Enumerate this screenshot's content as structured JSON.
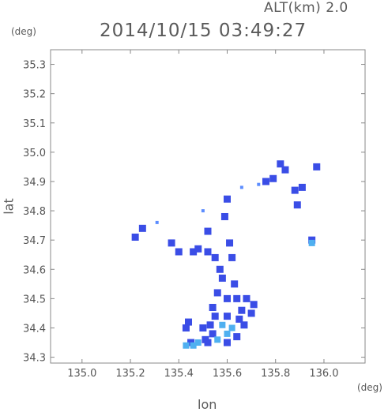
{
  "header": {
    "altitude_label": "ALT(km) 2.0",
    "datetime": "2014/10/15 03:49:27"
  },
  "chart_data": {
    "type": "heatmap",
    "title": "2014/10/15 03:49:27",
    "xlabel": "lon",
    "ylabel": "lat",
    "x_unit": "(deg)",
    "y_unit": "(deg)",
    "xlim": [
      134.87,
      136.17
    ],
    "ylim": [
      34.28,
      35.35
    ],
    "x_ticks": [
      "135.0",
      "135.2",
      "135.4",
      "135.6",
      "135.8",
      "136.0"
    ],
    "y_ticks": [
      "34.3",
      "34.4",
      "34.5",
      "34.6",
      "34.7",
      "34.8",
      "34.9",
      "35.0",
      "35.1",
      "35.2",
      "35.3"
    ],
    "grid": false,
    "colors": {
      "low": "#5c8dff",
      "mid": "#3a4de6",
      "high": "#4fb0f0",
      "frame": "#888888"
    },
    "echo_cells": [
      {
        "lon": 135.22,
        "lat": 34.71,
        "level": "mid"
      },
      {
        "lon": 135.25,
        "lat": 34.74,
        "level": "mid"
      },
      {
        "lon": 135.31,
        "lat": 34.76,
        "level": "low"
      },
      {
        "lon": 135.37,
        "lat": 34.69,
        "level": "mid"
      },
      {
        "lon": 135.4,
        "lat": 34.66,
        "level": "mid"
      },
      {
        "lon": 135.46,
        "lat": 34.66,
        "level": "mid"
      },
      {
        "lon": 135.48,
        "lat": 34.67,
        "level": "mid"
      },
      {
        "lon": 135.5,
        "lat": 34.8,
        "level": "low"
      },
      {
        "lon": 135.52,
        "lat": 34.73,
        "level": "mid"
      },
      {
        "lon": 135.52,
        "lat": 34.66,
        "level": "mid"
      },
      {
        "lon": 135.55,
        "lat": 34.64,
        "level": "mid"
      },
      {
        "lon": 135.57,
        "lat": 34.6,
        "level": "mid"
      },
      {
        "lon": 135.59,
        "lat": 34.78,
        "level": "mid"
      },
      {
        "lon": 135.6,
        "lat": 34.84,
        "level": "mid"
      },
      {
        "lon": 135.61,
        "lat": 34.69,
        "level": "mid"
      },
      {
        "lon": 135.62,
        "lat": 34.64,
        "level": "mid"
      },
      {
        "lon": 135.58,
        "lat": 34.57,
        "level": "mid"
      },
      {
        "lon": 135.63,
        "lat": 34.55,
        "level": "mid"
      },
      {
        "lon": 135.56,
        "lat": 34.52,
        "level": "mid"
      },
      {
        "lon": 135.6,
        "lat": 34.5,
        "level": "mid"
      },
      {
        "lon": 135.64,
        "lat": 34.5,
        "level": "mid"
      },
      {
        "lon": 135.68,
        "lat": 34.5,
        "level": "mid"
      },
      {
        "lon": 135.71,
        "lat": 34.48,
        "level": "mid"
      },
      {
        "lon": 135.54,
        "lat": 34.47,
        "level": "mid"
      },
      {
        "lon": 135.66,
        "lat": 34.46,
        "level": "mid"
      },
      {
        "lon": 135.7,
        "lat": 34.45,
        "level": "mid"
      },
      {
        "lon": 135.55,
        "lat": 34.44,
        "level": "mid"
      },
      {
        "lon": 135.6,
        "lat": 34.44,
        "level": "mid"
      },
      {
        "lon": 135.65,
        "lat": 34.43,
        "level": "mid"
      },
      {
        "lon": 135.53,
        "lat": 34.41,
        "level": "mid"
      },
      {
        "lon": 135.58,
        "lat": 34.41,
        "level": "high"
      },
      {
        "lon": 135.62,
        "lat": 34.4,
        "level": "high"
      },
      {
        "lon": 135.67,
        "lat": 34.41,
        "level": "mid"
      },
      {
        "lon": 135.5,
        "lat": 34.4,
        "level": "mid"
      },
      {
        "lon": 135.54,
        "lat": 34.38,
        "level": "mid"
      },
      {
        "lon": 135.6,
        "lat": 34.38,
        "level": "high"
      },
      {
        "lon": 135.64,
        "lat": 34.37,
        "level": "mid"
      },
      {
        "lon": 135.44,
        "lat": 34.42,
        "level": "mid"
      },
      {
        "lon": 135.43,
        "lat": 34.4,
        "level": "mid"
      },
      {
        "lon": 135.51,
        "lat": 34.36,
        "level": "mid"
      },
      {
        "lon": 135.56,
        "lat": 34.36,
        "level": "high"
      },
      {
        "lon": 135.6,
        "lat": 34.35,
        "level": "mid"
      },
      {
        "lon": 135.45,
        "lat": 34.35,
        "level": "mid"
      },
      {
        "lon": 135.48,
        "lat": 34.35,
        "level": "high"
      },
      {
        "lon": 135.52,
        "lat": 34.35,
        "level": "mid"
      },
      {
        "lon": 135.46,
        "lat": 34.34,
        "level": "high"
      },
      {
        "lon": 135.43,
        "lat": 34.34,
        "level": "high"
      },
      {
        "lon": 135.76,
        "lat": 34.9,
        "level": "mid"
      },
      {
        "lon": 135.79,
        "lat": 34.91,
        "level": "mid"
      },
      {
        "lon": 135.82,
        "lat": 34.96,
        "level": "mid"
      },
      {
        "lon": 135.84,
        "lat": 34.94,
        "level": "mid"
      },
      {
        "lon": 135.88,
        "lat": 34.87,
        "level": "mid"
      },
      {
        "lon": 135.91,
        "lat": 34.88,
        "level": "mid"
      },
      {
        "lon": 135.89,
        "lat": 34.82,
        "level": "mid"
      },
      {
        "lon": 135.97,
        "lat": 34.95,
        "level": "mid"
      },
      {
        "lon": 135.95,
        "lat": 34.7,
        "level": "mid"
      },
      {
        "lon": 135.95,
        "lat": 34.69,
        "level": "high"
      },
      {
        "lon": 135.66,
        "lat": 34.88,
        "level": "low"
      },
      {
        "lon": 135.73,
        "lat": 34.89,
        "level": "low"
      }
    ]
  }
}
